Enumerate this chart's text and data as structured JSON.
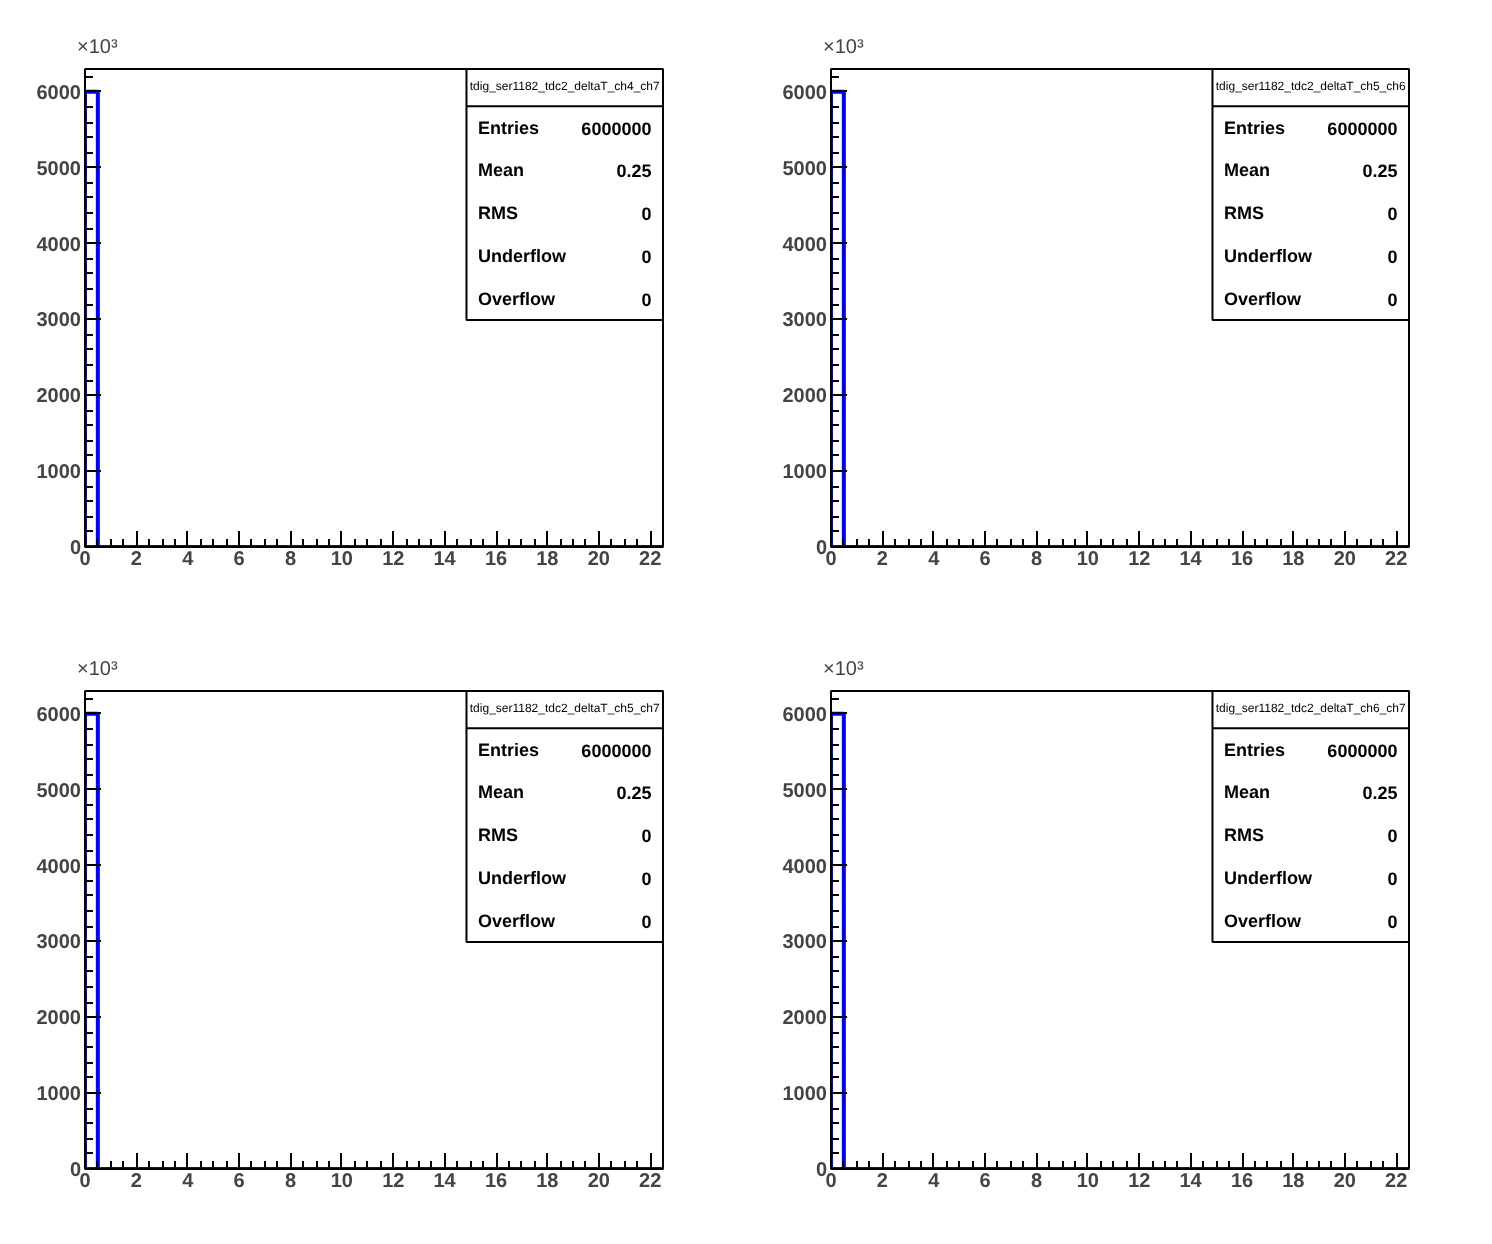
{
  "chart_data": [
    {
      "type": "histogram",
      "title": "tdig_ser1182_tdc2_deltaT_ch4_ch7",
      "ylabel": "×10³",
      "color": "#0000ff",
      "bins": [
        0,
        0.5,
        1,
        1.5,
        2,
        2.5,
        3,
        3.5,
        4,
        4.5,
        5,
        5.5,
        6,
        6.5,
        7,
        7.5,
        8,
        8.5,
        9,
        9.5,
        10,
        10.5,
        11,
        11.5,
        12,
        12.5,
        13,
        13.5,
        14,
        14.5,
        15,
        15.5,
        16,
        16.5,
        17,
        17.5,
        18,
        18.5,
        19,
        19.5,
        20,
        20.5,
        21,
        21.5,
        22,
        22.5
      ],
      "values": [
        6000,
        0,
        0,
        0,
        0,
        0,
        0,
        0,
        0,
        0,
        0,
        0,
        0,
        0,
        0,
        0,
        0,
        0,
        0,
        0,
        0,
        0,
        0,
        0,
        0,
        0,
        0,
        0,
        0,
        0,
        0,
        0,
        0,
        0,
        0,
        0,
        0,
        0,
        0,
        0,
        0,
        0,
        0,
        0,
        0
      ],
      "xlim": [
        0,
        22.5
      ],
      "ylim": [
        0,
        6300
      ],
      "xticks": [
        0,
        2,
        4,
        6,
        8,
        10,
        12,
        14,
        16,
        18,
        20,
        22
      ],
      "yticks": [
        0,
        1000,
        2000,
        3000,
        4000,
        5000,
        6000
      ],
      "grid": false,
      "annotations": [
        "Entries",
        "6000000",
        "Mean",
        "0.25",
        "RMS",
        "0",
        "Underflow",
        "0",
        "Overflow",
        "0"
      ]
    },
    {
      "type": "histogram",
      "title": "tdig_ser1182_tdc2_deltaT_ch5_ch6",
      "ylabel": "×10³",
      "color": "#0000ff",
      "bins": [
        0,
        0.5,
        1,
        1.5,
        2,
        2.5,
        3,
        3.5,
        4,
        4.5,
        5,
        5.5,
        6,
        6.5,
        7,
        7.5,
        8,
        8.5,
        9,
        9.5,
        10,
        10.5,
        11,
        11.5,
        12,
        12.5,
        13,
        13.5,
        14,
        14.5,
        15,
        15.5,
        16,
        16.5,
        17,
        17.5,
        18,
        18.5,
        19,
        19.5,
        20,
        20.5,
        21,
        21.5,
        22,
        22.5
      ],
      "values": [
        6000,
        0,
        0,
        0,
        0,
        0,
        0,
        0,
        0,
        0,
        0,
        0,
        0,
        0,
        0,
        0,
        0,
        0,
        0,
        0,
        0,
        0,
        0,
        0,
        0,
        0,
        0,
        0,
        0,
        0,
        0,
        0,
        0,
        0,
        0,
        0,
        0,
        0,
        0,
        0,
        0,
        0,
        0,
        0,
        0
      ],
      "xlim": [
        0,
        22.5
      ],
      "ylim": [
        0,
        6300
      ],
      "xticks": [
        0,
        2,
        4,
        6,
        8,
        10,
        12,
        14,
        16,
        18,
        20,
        22
      ],
      "yticks": [
        0,
        1000,
        2000,
        3000,
        4000,
        5000,
        6000
      ],
      "grid": false,
      "annotations": [
        "Entries",
        "6000000",
        "Mean",
        "0.25",
        "RMS",
        "0",
        "Underflow",
        "0",
        "Overflow",
        "0"
      ]
    },
    {
      "type": "histogram",
      "title": "tdig_ser1182_tdc2_deltaT_ch5_ch7",
      "ylabel": "×10³",
      "color": "#0000ff",
      "bins": [
        0,
        0.5,
        1,
        1.5,
        2,
        2.5,
        3,
        3.5,
        4,
        4.5,
        5,
        5.5,
        6,
        6.5,
        7,
        7.5,
        8,
        8.5,
        9,
        9.5,
        10,
        10.5,
        11,
        11.5,
        12,
        12.5,
        13,
        13.5,
        14,
        14.5,
        15,
        15.5,
        16,
        16.5,
        17,
        17.5,
        18,
        18.5,
        19,
        19.5,
        20,
        20.5,
        21,
        21.5,
        22,
        22.5
      ],
      "values": [
        6000,
        0,
        0,
        0,
        0,
        0,
        0,
        0,
        0,
        0,
        0,
        0,
        0,
        0,
        0,
        0,
        0,
        0,
        0,
        0,
        0,
        0,
        0,
        0,
        0,
        0,
        0,
        0,
        0,
        0,
        0,
        0,
        0,
        0,
        0,
        0,
        0,
        0,
        0,
        0,
        0,
        0,
        0,
        0,
        0
      ],
      "xlim": [
        0,
        22.5
      ],
      "ylim": [
        0,
        6300
      ],
      "xticks": [
        0,
        2,
        4,
        6,
        8,
        10,
        12,
        14,
        16,
        18,
        20,
        22
      ],
      "yticks": [
        0,
        1000,
        2000,
        3000,
        4000,
        5000,
        6000
      ],
      "grid": false,
      "annotations": [
        "Entries",
        "6000000",
        "Mean",
        "0.25",
        "RMS",
        "0",
        "Underflow",
        "0",
        "Overflow",
        "0"
      ]
    },
    {
      "type": "histogram",
      "title": "tdig_ser1182_tdc2_deltaT_ch6_ch7",
      "ylabel": "×10³",
      "color": "#0000ff",
      "bins": [
        0,
        0.5,
        1,
        1.5,
        2,
        2.5,
        3,
        3.5,
        4,
        4.5,
        5,
        5.5,
        6,
        6.5,
        7,
        7.5,
        8,
        8.5,
        9,
        9.5,
        10,
        10.5,
        11,
        11.5,
        12,
        12.5,
        13,
        13.5,
        14,
        14.5,
        15,
        15.5,
        16,
        16.5,
        17,
        17.5,
        18,
        18.5,
        19,
        19.5,
        20,
        20.5,
        21,
        21.5,
        22,
        22.5
      ],
      "values": [
        6000,
        0,
        0,
        0,
        0,
        0,
        0,
        0,
        0,
        0,
        0,
        0,
        0,
        0,
        0,
        0,
        0,
        0,
        0,
        0,
        0,
        0,
        0,
        0,
        0,
        0,
        0,
        0,
        0,
        0,
        0,
        0,
        0,
        0,
        0,
        0,
        0,
        0,
        0,
        0,
        0,
        0,
        0,
        0,
        0
      ],
      "xlim": [
        0,
        22.5
      ],
      "ylim": [
        0,
        6300
      ],
      "xticks": [
        0,
        2,
        4,
        6,
        8,
        10,
        12,
        14,
        16,
        18,
        20,
        22
      ],
      "yticks": [
        0,
        1000,
        2000,
        3000,
        4000,
        5000,
        6000
      ],
      "grid": false,
      "annotations": [
        "Entries",
        "6000000",
        "Mean",
        "0.25",
        "RMS",
        "0",
        "Underflow",
        "0",
        "Overflow",
        "0"
      ]
    }
  ]
}
